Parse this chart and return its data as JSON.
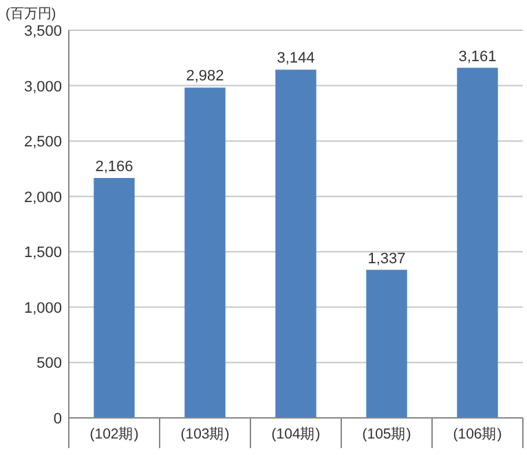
{
  "chart_data": {
    "type": "bar",
    "ylabel": "(百万円)",
    "categories": [
      "(102期)",
      "(103期)",
      "(104期)",
      "(105期)",
      "(106期)"
    ],
    "values": [
      2166,
      2982,
      3144,
      1337,
      3161
    ],
    "value_labels": [
      "2,166",
      "2,982",
      "3,144",
      "1,337",
      "3,161"
    ],
    "color": "#4f81bd",
    "ylim": [
      0,
      3500
    ],
    "yticks": [
      {
        "value": 0,
        "label": "0"
      },
      {
        "value": 500,
        "label": "500"
      },
      {
        "value": 1000,
        "label": "1,000"
      },
      {
        "value": 1500,
        "label": "1,500"
      },
      {
        "value": 2000,
        "label": "2,000"
      },
      {
        "value": 2500,
        "label": "2,500"
      },
      {
        "value": 3000,
        "label": "3,000"
      },
      {
        "value": 3500,
        "label": "3,500"
      }
    ],
    "grid": "y"
  }
}
